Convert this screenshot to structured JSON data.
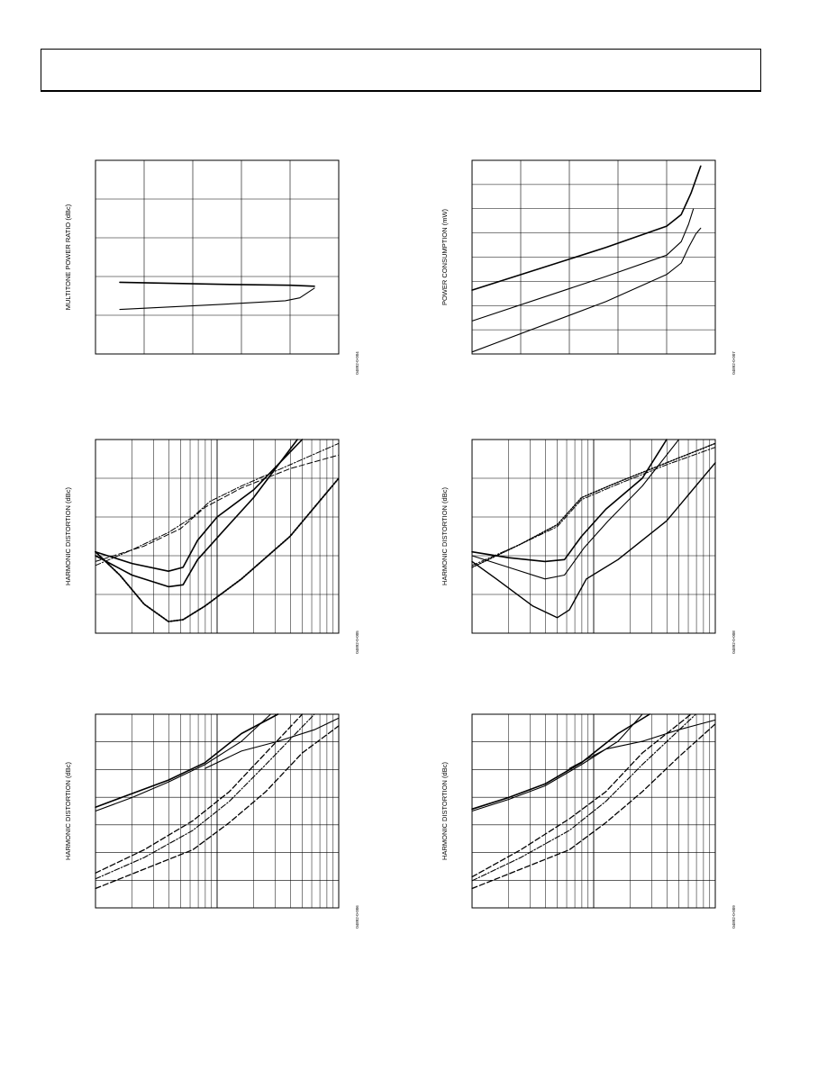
{
  "header": {
    "title": ""
  },
  "chart_data": [
    {
      "id": "mtpr",
      "type": "line",
      "ylabel": "MULTITONE POWER RATIO (dBc)",
      "fig_id": "04892-0-004",
      "grid_cols": 5,
      "grid_rows": 5,
      "log_x": false,
      "series": [
        {
          "style": "solid",
          "width": 1.6,
          "points": [
            [
              0.1,
              0.63
            ],
            [
              0.5,
              0.64
            ],
            [
              0.8,
              0.645
            ],
            [
              0.9,
              0.65
            ]
          ]
        },
        {
          "style": "solid",
          "width": 1.1,
          "points": [
            [
              0.1,
              0.77
            ],
            [
              0.5,
              0.745
            ],
            [
              0.78,
              0.725
            ],
            [
              0.84,
              0.71
            ],
            [
              0.9,
              0.66
            ]
          ]
        }
      ]
    },
    {
      "id": "power",
      "type": "line",
      "ylabel": "POWER CONSUMPTION (mW)",
      "fig_id": "04892-0-007",
      "grid_cols": 5,
      "grid_rows": 8,
      "log_x": false,
      "series": [
        {
          "style": "solid",
          "width": 1.6,
          "points": [
            [
              0.0,
              0.67
            ],
            [
              0.55,
              0.45
            ],
            [
              0.8,
              0.34
            ],
            [
              0.86,
              0.28
            ],
            [
              0.9,
              0.17
            ],
            [
              0.92,
              0.1
            ],
            [
              0.94,
              0.03
            ]
          ]
        },
        {
          "style": "solid",
          "width": 1.1,
          "points": [
            [
              0.0,
              0.83
            ],
            [
              0.55,
              0.6
            ],
            [
              0.8,
              0.49
            ],
            [
              0.86,
              0.42
            ],
            [
              0.89,
              0.33
            ],
            [
              0.91,
              0.25
            ]
          ]
        },
        {
          "style": "solid",
          "width": 1.1,
          "points": [
            [
              0.0,
              0.99
            ],
            [
              0.55,
              0.73
            ],
            [
              0.8,
              0.59
            ],
            [
              0.86,
              0.53
            ],
            [
              0.89,
              0.45
            ],
            [
              0.92,
              0.38
            ],
            [
              0.94,
              0.35
            ]
          ]
        }
      ]
    },
    {
      "id": "hd1",
      "type": "line",
      "ylabel": "HARMONIC  DISTORTION (dBc)",
      "fig_id": "04892-0-005",
      "grid_cols": 0,
      "grid_rows": 5,
      "log_x": true,
      "series": [
        {
          "style": "solid",
          "width": 1.6,
          "points": [
            [
              0.0,
              0.58
            ],
            [
              0.15,
              0.64
            ],
            [
              0.3,
              0.68
            ],
            [
              0.36,
              0.66
            ],
            [
              0.42,
              0.52
            ],
            [
              0.5,
              0.4
            ],
            [
              0.65,
              0.26
            ],
            [
              0.85,
              0.0
            ]
          ]
        },
        {
          "style": "solid",
          "width": 1.6,
          "points": [
            [
              0.0,
              0.6
            ],
            [
              0.15,
              0.7
            ],
            [
              0.3,
              0.76
            ],
            [
              0.36,
              0.75
            ],
            [
              0.42,
              0.62
            ],
            [
              0.52,
              0.48
            ],
            [
              0.65,
              0.3
            ],
            [
              0.83,
              0.0
            ]
          ]
        },
        {
          "style": "dotted",
          "width": 1.8,
          "points": [
            [
              0.0,
              0.58
            ],
            [
              0.1,
              0.7
            ],
            [
              0.2,
              0.85
            ],
            [
              0.3,
              0.94
            ],
            [
              0.36,
              0.93
            ],
            [
              0.45,
              0.86
            ],
            [
              0.6,
              0.72
            ],
            [
              0.8,
              0.5
            ],
            [
              1.0,
              0.2
            ]
          ]
        },
        {
          "style": "dashdot",
          "width": 1.0,
          "points": [
            [
              0.0,
              0.65
            ],
            [
              0.15,
              0.57
            ],
            [
              0.3,
              0.48
            ],
            [
              0.4,
              0.4
            ],
            [
              0.47,
              0.32
            ],
            [
              0.6,
              0.24
            ],
            [
              0.8,
              0.13
            ],
            [
              1.0,
              0.02
            ]
          ]
        },
        {
          "style": "dashed",
          "width": 1.0,
          "points": [
            [
              0.0,
              0.63
            ],
            [
              0.2,
              0.55
            ],
            [
              0.35,
              0.46
            ],
            [
              0.45,
              0.35
            ],
            [
              0.6,
              0.25
            ],
            [
              0.8,
              0.15
            ],
            [
              1.0,
              0.08
            ]
          ]
        }
      ]
    },
    {
      "id": "hd2",
      "type": "line",
      "ylabel": "HARMONIC  DISTORTION (dBc)",
      "fig_id": "04892-0-008",
      "grid_cols": 0,
      "grid_rows": 5,
      "log_x": true,
      "series": [
        {
          "style": "solid",
          "width": 1.6,
          "points": [
            [
              0.0,
              0.58
            ],
            [
              0.15,
              0.61
            ],
            [
              0.3,
              0.63
            ],
            [
              0.38,
              0.62
            ],
            [
              0.45,
              0.5
            ],
            [
              0.55,
              0.36
            ],
            [
              0.7,
              0.2
            ],
            [
              0.8,
              0.0
            ]
          ]
        },
        {
          "style": "solid",
          "width": 1.1,
          "points": [
            [
              0.0,
              0.6
            ],
            [
              0.15,
              0.66
            ],
            [
              0.3,
              0.72
            ],
            [
              0.38,
              0.7
            ],
            [
              0.46,
              0.56
            ],
            [
              0.56,
              0.42
            ],
            [
              0.7,
              0.24
            ],
            [
              0.85,
              0.0
            ]
          ]
        },
        {
          "style": "solid",
          "width": 1.4,
          "points": [
            [
              0.0,
              0.63
            ],
            [
              0.1,
              0.72
            ],
            [
              0.25,
              0.86
            ],
            [
              0.35,
              0.92
            ],
            [
              0.4,
              0.88
            ],
            [
              0.47,
              0.72
            ],
            [
              0.6,
              0.62
            ],
            [
              0.8,
              0.42
            ],
            [
              1.0,
              0.12
            ]
          ]
        },
        {
          "style": "dotted",
          "width": 1.4,
          "points": [
            [
              0.0,
              0.66
            ],
            [
              0.2,
              0.54
            ],
            [
              0.35,
              0.44
            ],
            [
              0.45,
              0.3
            ],
            [
              0.6,
              0.22
            ],
            [
              0.8,
              0.12
            ],
            [
              1.0,
              0.02
            ]
          ]
        },
        {
          "style": "dashdot",
          "width": 1.0,
          "points": [
            [
              0.0,
              0.65
            ],
            [
              0.2,
              0.54
            ],
            [
              0.35,
              0.45
            ],
            [
              0.45,
              0.31
            ],
            [
              0.6,
              0.23
            ],
            [
              0.8,
              0.13
            ],
            [
              1.0,
              0.04
            ]
          ]
        }
      ]
    },
    {
      "id": "hd3",
      "type": "line",
      "ylabel": "HARMONIC DISTORTION (dBc)",
      "fig_id": "04892-0-006",
      "grid_cols": 0,
      "grid_rows": 7,
      "log_x": true,
      "series": [
        {
          "style": "solid",
          "width": 1.6,
          "points": [
            [
              0.0,
              0.48
            ],
            [
              0.15,
              0.41
            ],
            [
              0.3,
              0.34
            ],
            [
              0.45,
              0.25
            ],
            [
              0.6,
              0.1
            ],
            [
              0.75,
              0.0
            ]
          ]
        },
        {
          "style": "solid",
          "width": 1.1,
          "points": [
            [
              0.0,
              0.5
            ],
            [
              0.15,
              0.43
            ],
            [
              0.3,
              0.35
            ],
            [
              0.45,
              0.26
            ],
            [
              0.6,
              0.14
            ],
            [
              0.72,
              0.0
            ]
          ]
        },
        {
          "style": "solid",
          "width": 1.1,
          "points": [
            [
              0.45,
              0.28
            ],
            [
              0.6,
              0.19
            ],
            [
              0.75,
              0.14
            ],
            [
              0.9,
              0.08
            ],
            [
              1.0,
              0.02
            ]
          ]
        },
        {
          "style": "dashed",
          "width": 1.3,
          "points": [
            [
              0.0,
              0.82
            ],
            [
              0.2,
              0.7
            ],
            [
              0.4,
              0.55
            ],
            [
              0.55,
              0.4
            ],
            [
              0.7,
              0.2
            ],
            [
              0.85,
              0.0
            ]
          ]
        },
        {
          "style": "dashdot",
          "width": 1.1,
          "points": [
            [
              0.0,
              0.85
            ],
            [
              0.2,
              0.74
            ],
            [
              0.4,
              0.6
            ],
            [
              0.55,
              0.45
            ],
            [
              0.7,
              0.26
            ],
            [
              0.9,
              0.0
            ]
          ]
        },
        {
          "style": "dashed",
          "width": 1.3,
          "points": [
            [
              0.0,
              0.9
            ],
            [
              0.2,
              0.8
            ],
            [
              0.4,
              0.7
            ],
            [
              0.55,
              0.56
            ],
            [
              0.7,
              0.4
            ],
            [
              0.85,
              0.2
            ],
            [
              1.0,
              0.06
            ]
          ]
        }
      ]
    },
    {
      "id": "hd4",
      "type": "line",
      "ylabel": "HARMONIC DISTORTION (dBc)",
      "fig_id": "04892-0-009",
      "grid_cols": 0,
      "grid_rows": 7,
      "log_x": true,
      "series": [
        {
          "style": "solid",
          "width": 1.6,
          "points": [
            [
              0.0,
              0.49
            ],
            [
              0.15,
              0.43
            ],
            [
              0.3,
              0.36
            ],
            [
              0.45,
              0.25
            ],
            [
              0.6,
              0.1
            ],
            [
              0.73,
              0.0
            ]
          ]
        },
        {
          "style": "solid",
          "width": 1.1,
          "points": [
            [
              0.0,
              0.5
            ],
            [
              0.15,
              0.44
            ],
            [
              0.3,
              0.37
            ],
            [
              0.45,
              0.26
            ],
            [
              0.6,
              0.14
            ],
            [
              0.7,
              0.0
            ]
          ]
        },
        {
          "style": "solid",
          "width": 1.1,
          "points": [
            [
              0.4,
              0.28
            ],
            [
              0.55,
              0.18
            ],
            [
              0.7,
              0.14
            ],
            [
              0.85,
              0.08
            ],
            [
              1.0,
              0.03
            ]
          ]
        },
        {
          "style": "dashed",
          "width": 1.3,
          "points": [
            [
              0.0,
              0.84
            ],
            [
              0.2,
              0.7
            ],
            [
              0.4,
              0.54
            ],
            [
              0.55,
              0.4
            ],
            [
              0.7,
              0.2
            ],
            [
              0.9,
              0.0
            ]
          ]
        },
        {
          "style": "dashdot",
          "width": 1.1,
          "points": [
            [
              0.0,
              0.86
            ],
            [
              0.2,
              0.74
            ],
            [
              0.4,
              0.6
            ],
            [
              0.55,
              0.45
            ],
            [
              0.7,
              0.26
            ],
            [
              0.92,
              0.0
            ]
          ]
        },
        {
          "style": "dashed",
          "width": 1.3,
          "points": [
            [
              0.0,
              0.9
            ],
            [
              0.2,
              0.8
            ],
            [
              0.4,
              0.7
            ],
            [
              0.55,
              0.56
            ],
            [
              0.7,
              0.4
            ],
            [
              0.85,
              0.22
            ],
            [
              1.0,
              0.05
            ]
          ]
        }
      ]
    }
  ]
}
